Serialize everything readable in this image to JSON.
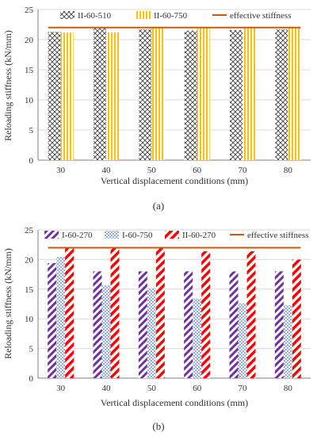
{
  "colors": {
    "effective_line": "#C55A11",
    "axis": "#7f7f7f",
    "grid": "#d9d9d9",
    "text": "#333333"
  },
  "chart_data": [
    {
      "type": "bar",
      "panel_label": "(a)",
      "xlabel": "Vertical displacement conditions (mm)",
      "ylabel": "Reloading stiffness (kN/mm)",
      "ylim": [
        0,
        25
      ],
      "yticks": [
        "0",
        "5",
        "10",
        "15",
        "20",
        "25"
      ],
      "categories": [
        "30",
        "40",
        "50",
        "60",
        "70",
        "80"
      ],
      "grid": true,
      "legend": "top",
      "series": [
        {
          "name": "II-60-510",
          "pattern": "crosshatch",
          "color": "#404040",
          "values": [
            21.3,
            22.0,
            21.7,
            21.5,
            21.6,
            21.7
          ]
        },
        {
          "name": "II-60-750",
          "pattern": "vertical-stripes",
          "color": "#FFC000",
          "values": [
            21.2,
            21.2,
            22.0,
            21.9,
            21.9,
            21.9
          ]
        }
      ],
      "reference_line": {
        "name": "effective stiffness",
        "value": 22.0
      }
    },
    {
      "type": "bar",
      "panel_label": "(b)",
      "xlabel": "Vertical displacement conditions (mm)",
      "ylabel": "Reloading stiffness (kN/mm)",
      "ylim": [
        0,
        25
      ],
      "yticks": [
        "0",
        "5",
        "10",
        "15",
        "20",
        "25"
      ],
      "categories": [
        "30",
        "40",
        "50",
        "60",
        "70",
        "80"
      ],
      "grid": true,
      "legend": "top",
      "series": [
        {
          "name": "I-60-270",
          "pattern": "diagonal-stripes",
          "color": "#7030A0",
          "values": [
            19.4,
            18.0,
            18.0,
            18.0,
            18.0,
            18.0
          ]
        },
        {
          "name": "I-60-750",
          "pattern": "dots",
          "color": "#4472C4",
          "values": [
            20.4,
            15.7,
            15.2,
            13.4,
            12.6,
            12.3
          ]
        },
        {
          "name": "II-60-270",
          "pattern": "diagonal-stripes-wide",
          "color": "#FF0000",
          "values": [
            22.0,
            22.0,
            22.0,
            21.4,
            21.4,
            20.0
          ]
        }
      ],
      "reference_line": {
        "name": "effective stiffness",
        "value": 22.0
      }
    }
  ]
}
